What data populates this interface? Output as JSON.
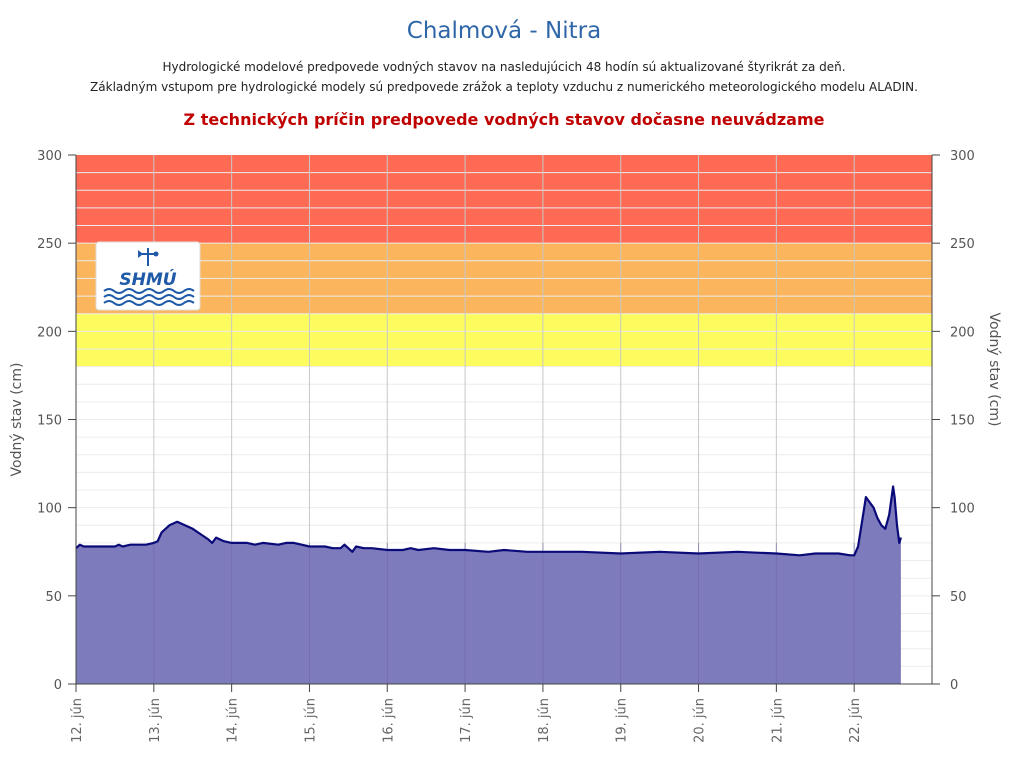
{
  "header": {
    "title": "Chalmová - Nitra",
    "subtitle_1": "Hydrologické modelové predpovede vodných stavov na nasledujúcich 48 hodín sú aktualizované štyrikrát za deň.",
    "subtitle_2": "Základným vstupom pre hydrologické modely sú predpovede zrážok a teploty vzduchu z numerického meteorologického modelu ALADIN.",
    "warning": "Z technických príčin predpovede vodných stavov dočasne neuvádzame"
  },
  "logo": {
    "text": "SHMÚ"
  },
  "colors": {
    "band_red": "#fe6a54",
    "band_orange": "#fbb55c",
    "band_yellow": "#fcfc5e",
    "area_fill": "#7e7bbc",
    "line": "#0a0a78",
    "title": "#2f66a8",
    "warning": "#c00000"
  },
  "chart_data": {
    "type": "area",
    "ylabel": "Vodný stav (cm)",
    "ylabel_right": "Vodný stav (cm)",
    "ylim": [
      0,
      300
    ],
    "yticks": [
      "0",
      "50",
      "100",
      "150",
      "200",
      "250",
      "300"
    ],
    "x_categories": [
      "12. jún",
      "13. jún",
      "14. jún",
      "15. jún",
      "16. jún",
      "17. jún",
      "18. jún",
      "19. jún",
      "20. jún",
      "21. jún",
      "22. jún"
    ],
    "xlim_days": [
      0,
      11
    ],
    "grid": true,
    "threshold_bands": [
      {
        "from": 180,
        "to": 210,
        "color": "yellow"
      },
      {
        "from": 210,
        "to": 250,
        "color": "orange"
      },
      {
        "from": 250,
        "to": 300,
        "color": "red"
      }
    ],
    "series": [
      {
        "x_day": [
          0,
          0.05,
          0.1,
          0.3,
          0.5,
          0.55,
          0.6,
          0.7,
          0.9,
          1.0,
          1.05,
          1.1,
          1.2,
          1.3,
          1.4,
          1.5,
          1.6,
          1.7,
          1.75,
          1.8,
          1.9,
          2.0,
          2.2,
          2.3,
          2.4,
          2.6,
          2.7,
          2.8,
          2.9,
          3.0,
          3.2,
          3.3,
          3.4,
          3.45,
          3.55,
          3.6,
          3.7,
          3.8,
          4.0,
          4.2,
          4.3,
          4.4,
          4.6,
          4.8,
          5.0,
          5.3,
          5.5,
          5.8,
          6.0,
          6.5,
          7.0,
          7.5,
          8.0,
          8.5,
          9.0,
          9.3,
          9.5,
          9.8,
          9.95,
          10.0,
          10.05,
          10.1,
          10.15,
          10.2,
          10.25,
          10.3,
          10.35,
          10.4,
          10.45,
          10.5,
          10.52,
          10.55,
          10.58,
          10.6
        ],
        "values": [
          77,
          79,
          78,
          78,
          78,
          79,
          78,
          79,
          79,
          80,
          81,
          86,
          90,
          92,
          90,
          88,
          85,
          82,
          80,
          83,
          81,
          80,
          80,
          79,
          80,
          79,
          80,
          80,
          79,
          78,
          78,
          77,
          77,
          79,
          75,
          78,
          77,
          77,
          76,
          76,
          77,
          76,
          77,
          76,
          76,
          75,
          76,
          75,
          75,
          75,
          74,
          75,
          74,
          75,
          74,
          73,
          74,
          74,
          73,
          73,
          78,
          92,
          106,
          103,
          100,
          94,
          90,
          88,
          96,
          112,
          106,
          90,
          80,
          83
        ]
      }
    ]
  }
}
